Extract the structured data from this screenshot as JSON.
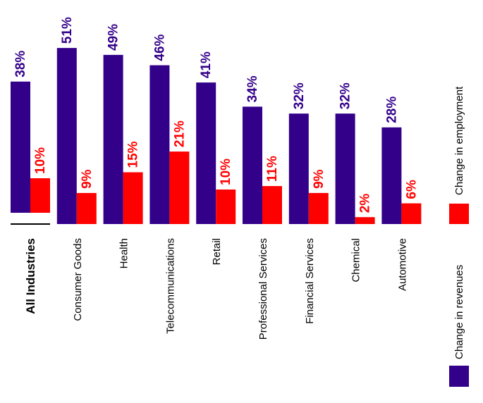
{
  "chart_data": {
    "type": "bar",
    "orientation": "vertical-rotated",
    "categories": [
      "All Industries",
      "Consumer Goods",
      "Health",
      "Telecommunications",
      "Retail",
      "Professional Services",
      "Financial Services",
      "Chemical",
      "Automotive"
    ],
    "series": [
      {
        "name": "Change in revenues",
        "color": "#33008a",
        "values": [
          38,
          51,
          49,
          46,
          41,
          34,
          32,
          32,
          28
        ],
        "labels": [
          "38%",
          "51%",
          "49%",
          "46%",
          "41%",
          "34%",
          "32%",
          "32%",
          "28%"
        ]
      },
      {
        "name": "Change in employment",
        "color": "#ff0000",
        "values": [
          10,
          9,
          15,
          21,
          10,
          11,
          9,
          2,
          6
        ],
        "labels": [
          "10%",
          "9%",
          "15%",
          "21%",
          "10%",
          "11%",
          "9%",
          "2%",
          "6%"
        ]
      }
    ],
    "title": "",
    "xlabel": "",
    "ylabel": "",
    "ylim": [
      0,
      55
    ],
    "grid": false,
    "legend_position": "right"
  }
}
